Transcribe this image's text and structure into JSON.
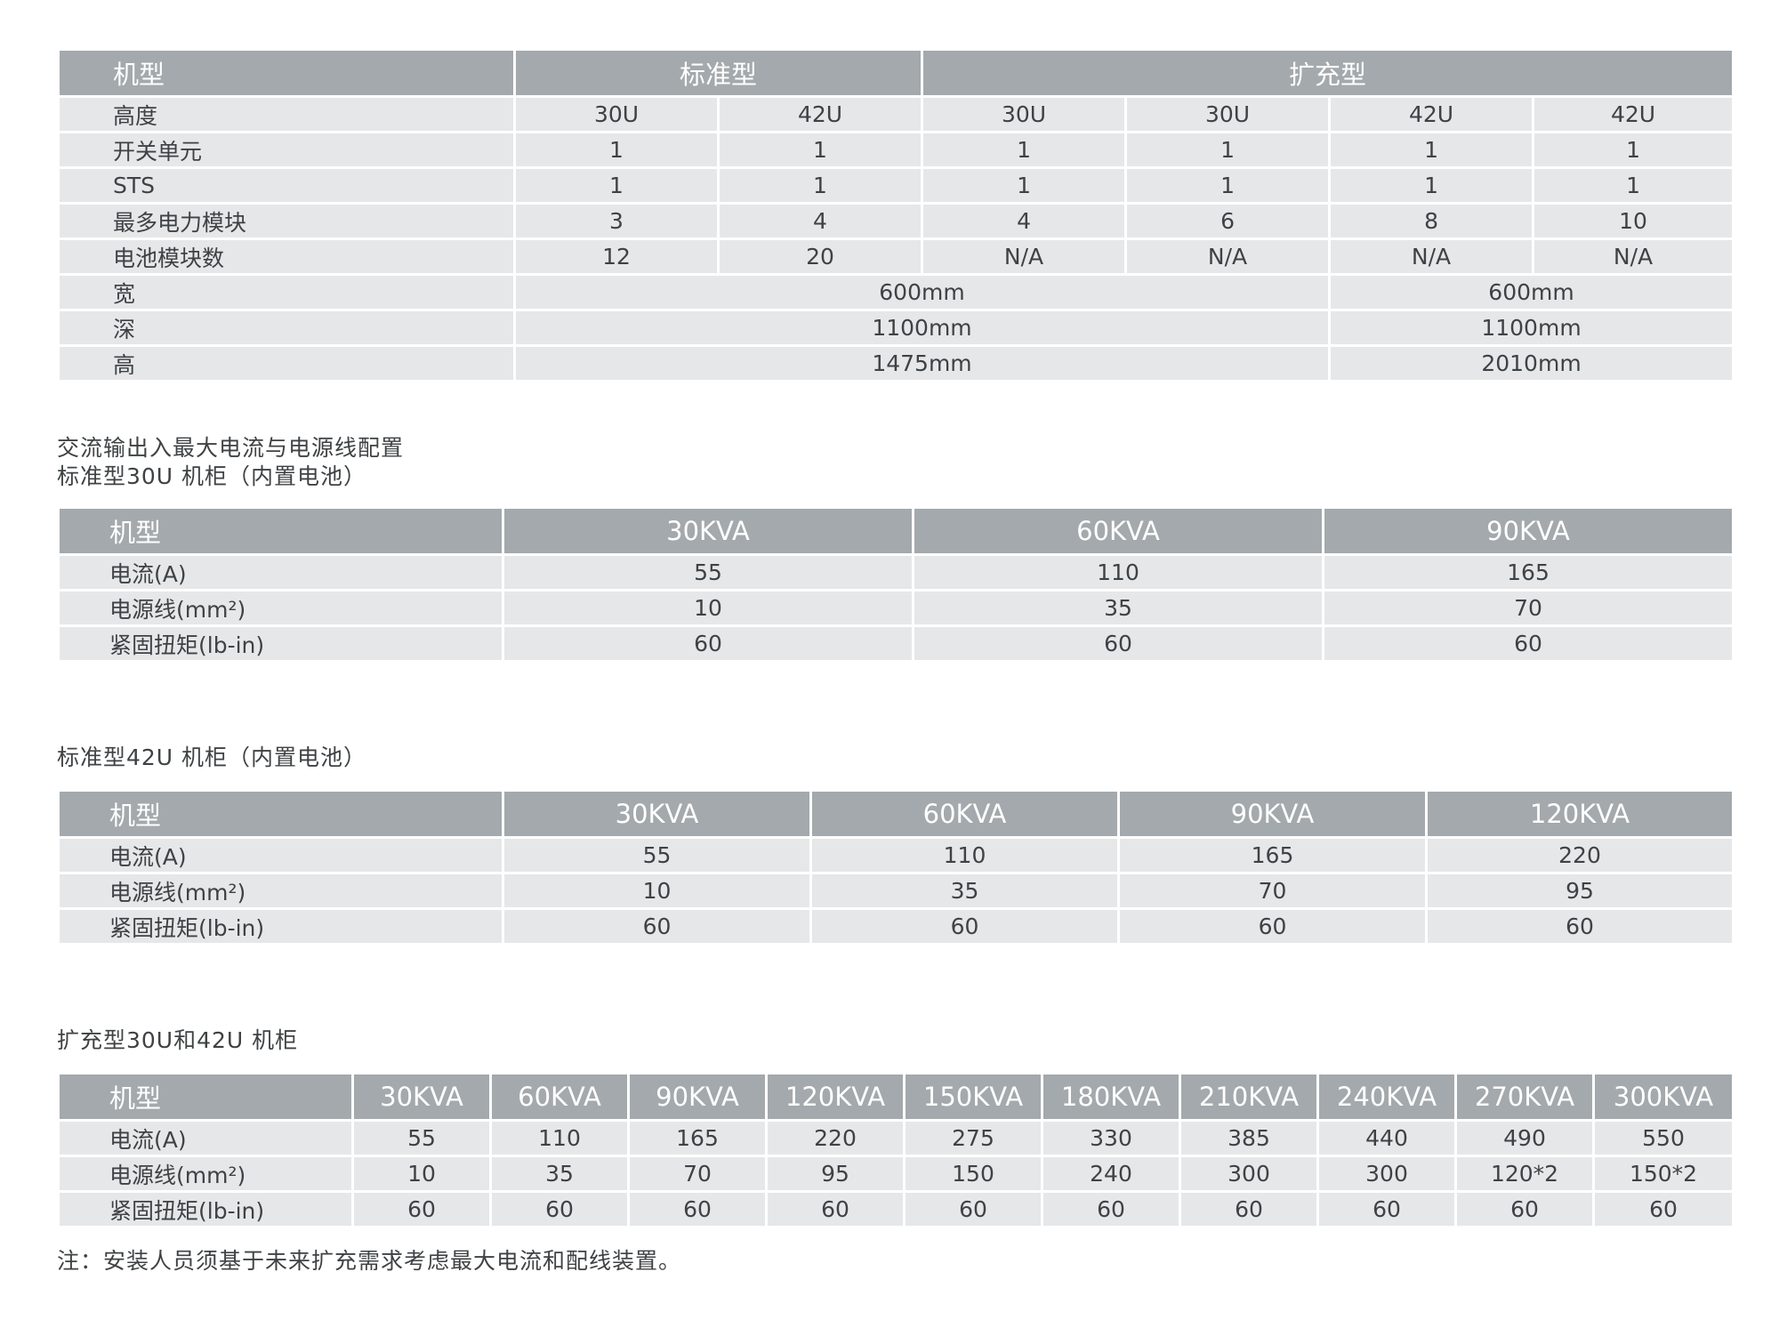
{
  "table1": {
    "header": {
      "label": "机型",
      "standard": "标准型",
      "expanded": "扩充型"
    },
    "rows": [
      {
        "label": "高度",
        "values": [
          "30U",
          "42U",
          "30U",
          "30U",
          "42U",
          "42U"
        ]
      },
      {
        "label": "开关单元",
        "values": [
          "1",
          "1",
          "1",
          "1",
          "1",
          "1"
        ]
      },
      {
        "label": "STS",
        "values": [
          "1",
          "1",
          "1",
          "1",
          "1",
          "1"
        ]
      },
      {
        "label": "最多电力模块",
        "values": [
          "3",
          "4",
          "4",
          "6",
          "8",
          "10"
        ]
      },
      {
        "label": "电池模块数",
        "values": [
          "12",
          "20",
          "N/A",
          "N/A",
          "N/A",
          "N/A"
        ]
      }
    ],
    "dims": [
      {
        "label": "宽",
        "values": [
          "600mm",
          "600mm"
        ]
      },
      {
        "label": "深",
        "values": [
          "1100mm",
          "1100mm"
        ]
      },
      {
        "label": "高",
        "values": [
          "1475mm",
          "2010mm"
        ]
      }
    ]
  },
  "section2": {
    "title": "交流输出入最大电流与电源线配置",
    "subtitle": "标准型30U 机柜（内置电池）",
    "header": [
      "机型",
      "30KVA",
      "60KVA",
      "90KVA"
    ],
    "rows": [
      [
        "电流(A)",
        "55",
        "110",
        "165"
      ],
      [
        "电源线(mm²)",
        "10",
        "35",
        "70"
      ],
      [
        "紧固扭矩(lb-in)",
        "60",
        "60",
        "60"
      ]
    ]
  },
  "section3": {
    "title": "标准型42U 机柜（内置电池）",
    "header": [
      "机型",
      "30KVA",
      "60KVA",
      "90KVA",
      "120KVA"
    ],
    "rows": [
      [
        "电流(A)",
        "55",
        "110",
        "165",
        "220"
      ],
      [
        "电源线(mm²)",
        "10",
        "35",
        "70",
        "95"
      ],
      [
        "紧固扭矩(lb-in)",
        "60",
        "60",
        "60",
        "60"
      ]
    ]
  },
  "section4": {
    "title": "扩充型30U和42U 机柜",
    "header": [
      "机型",
      "30KVA",
      "60KVA",
      "90KVA",
      "120KVA",
      "150KVA",
      "180KVA",
      "210KVA",
      "240KVA",
      "270KVA",
      "300KVA"
    ],
    "rows": [
      [
        "电流(A)",
        "55",
        "110",
        "165",
        "220",
        "275",
        "330",
        "385",
        "440",
        "490",
        "550"
      ],
      [
        "电源线(mm²)",
        "10",
        "35",
        "70",
        "95",
        "150",
        "240",
        "300",
        "300",
        "120*2",
        "150*2"
      ],
      [
        "紧固扭矩(lb-in)",
        "60",
        "60",
        "60",
        "60",
        "60",
        "60",
        "60",
        "60",
        "60",
        "60"
      ]
    ]
  },
  "note": "注：安装人员须基于未来扩充需求考虑最大电流和配线装置。",
  "colors": {
    "header_bg": "#a3a9ac",
    "row_bg": "#e6e7e8",
    "text": "#3f4244"
  }
}
